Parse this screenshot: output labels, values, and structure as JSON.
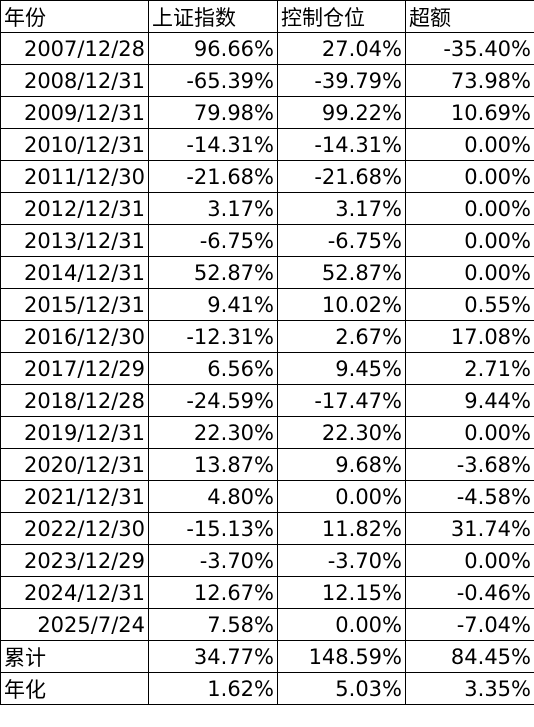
{
  "table": {
    "header": [
      "年份",
      "上证指数",
      "控制仓位",
      "超额"
    ],
    "rows": [
      [
        "2007/12/28",
        "96.66%",
        "27.04%",
        "-35.40%"
      ],
      [
        "2008/12/31",
        "-65.39%",
        "-39.79%",
        "73.98%"
      ],
      [
        "2009/12/31",
        "79.98%",
        "99.22%",
        "10.69%"
      ],
      [
        "2010/12/31",
        "-14.31%",
        "-14.31%",
        "0.00%"
      ],
      [
        "2011/12/30",
        "-21.68%",
        "-21.68%",
        "0.00%"
      ],
      [
        "2012/12/31",
        "3.17%",
        "3.17%",
        "0.00%"
      ],
      [
        "2013/12/31",
        "-6.75%",
        "-6.75%",
        "0.00%"
      ],
      [
        "2014/12/31",
        "52.87%",
        "52.87%",
        "0.00%"
      ],
      [
        "2015/12/31",
        "9.41%",
        "10.02%",
        "0.55%"
      ],
      [
        "2016/12/30",
        "-12.31%",
        "2.67%",
        "17.08%"
      ],
      [
        "2017/12/29",
        "6.56%",
        "9.45%",
        "2.71%"
      ],
      [
        "2018/12/28",
        "-24.59%",
        "-17.47%",
        "9.44%"
      ],
      [
        "2019/12/31",
        "22.30%",
        "22.30%",
        "0.00%"
      ],
      [
        "2020/12/31",
        "13.87%",
        "9.68%",
        "-3.68%"
      ],
      [
        "2021/12/31",
        "4.80%",
        "0.00%",
        "-4.58%"
      ],
      [
        "2022/12/30",
        "-15.13%",
        "11.82%",
        "31.74%"
      ],
      [
        "2023/12/29",
        "-3.70%",
        "-3.70%",
        "0.00%"
      ],
      [
        "2024/12/31",
        "12.67%",
        "12.15%",
        "-0.46%"
      ],
      [
        "2025/7/24",
        "7.58%",
        "0.00%",
        "-7.04%"
      ],
      [
        "累计",
        "34.77%",
        "148.59%",
        "84.45%"
      ],
      [
        "年化",
        "1.62%",
        "5.03%",
        "3.35%"
      ]
    ]
  }
}
